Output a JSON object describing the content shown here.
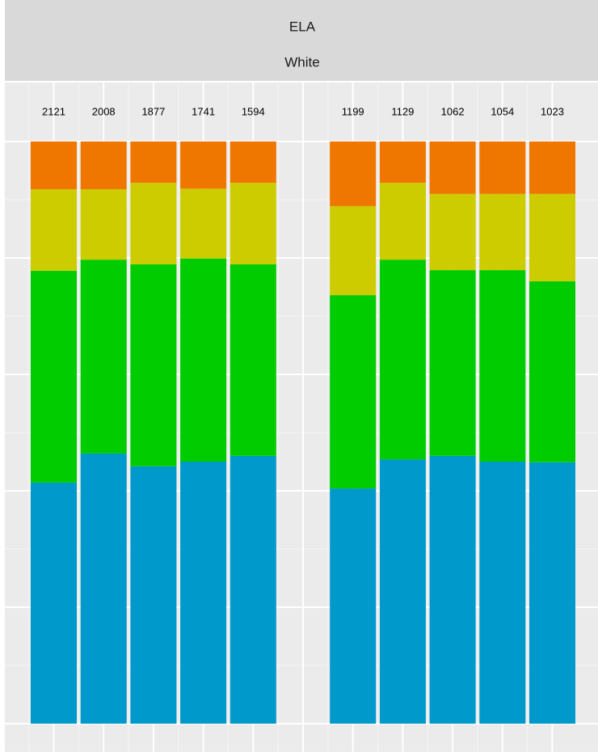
{
  "chart_data": {
    "type": "stacked-bar",
    "title": "ELA",
    "subtitle": "White",
    "categories": [
      "2121",
      "2008",
      "1877",
      "1741",
      "1594",
      null,
      "1199",
      "1129",
      "1062",
      "1054",
      "1023"
    ],
    "series": [
      {
        "color": "#0099cc",
        "values": [
          41.4,
          46.4,
          44.2,
          45.0,
          46.0,
          null,
          40.4,
          45.4,
          46.0,
          45.0,
          44.9
        ]
      },
      {
        "color": "#00cc00",
        "values": [
          36.4,
          33.3,
          34.7,
          34.9,
          32.9,
          null,
          33.2,
          34.3,
          31.9,
          32.9,
          31.1
        ]
      },
      {
        "color": "#cccc00",
        "values": [
          14.0,
          12.1,
          14.0,
          12.0,
          14.0,
          null,
          15.3,
          13.2,
          13.1,
          13.1,
          15.0
        ]
      },
      {
        "color": "#ef7700",
        "values": [
          8.2,
          8.2,
          7.1,
          8.1,
          7.1,
          null,
          11.1,
          7.1,
          9.0,
          9.0,
          9.0
        ]
      }
    ],
    "ylim": [
      0,
      100
    ],
    "yticks": [
      0,
      20,
      40,
      60,
      80,
      100
    ],
    "grid": true
  }
}
